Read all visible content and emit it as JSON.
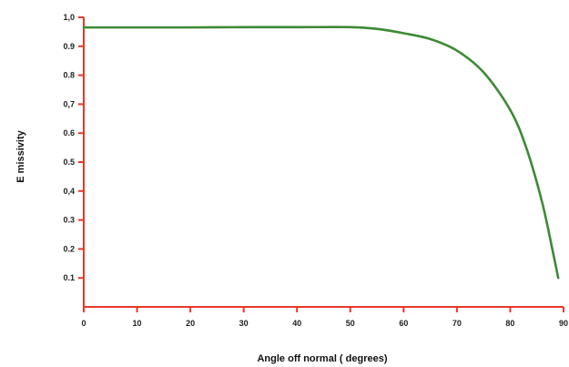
{
  "chart_data": {
    "type": "line",
    "title": "",
    "xlabel": "Angle off normal ( degrees)",
    "ylabel": "E missivity",
    "xlim": [
      0,
      90
    ],
    "ylim": [
      0,
      1.0
    ],
    "x_ticks": [
      {
        "value": 0,
        "label": "0"
      },
      {
        "value": 10,
        "label": "10"
      },
      {
        "value": 20,
        "label": "20"
      },
      {
        "value": 30,
        "label": "30"
      },
      {
        "value": 40,
        "label": "40"
      },
      {
        "value": 50,
        "label": "50"
      },
      {
        "value": 60,
        "label": "60"
      },
      {
        "value": 70,
        "label": "70"
      },
      {
        "value": 80,
        "label": "80"
      },
      {
        "value": 90,
        "label": "90"
      }
    ],
    "y_ticks": [
      {
        "value": 0.1,
        "label": "0.1"
      },
      {
        "value": 0.2,
        "label": "0.2"
      },
      {
        "value": 0.3,
        "label": "0.3"
      },
      {
        "value": 0.4,
        "label": "0,4"
      },
      {
        "value": 0.5,
        "label": "0.5"
      },
      {
        "value": 0.6,
        "label": "0.6"
      },
      {
        "value": 0.7,
        "label": "0,7"
      },
      {
        "value": 0.8,
        "label": "0.8"
      },
      {
        "value": 0.9,
        "label": "0.9"
      },
      {
        "value": 1.0,
        "label": "1,0"
      }
    ],
    "grid": false,
    "axis_color": "#e8382a",
    "series": [
      {
        "color": "#3d8a36",
        "x": [
          0,
          10,
          20,
          30,
          40,
          50,
          55,
          60,
          65,
          70,
          75,
          80,
          83,
          86,
          88,
          89
        ],
        "y": [
          0.965,
          0.965,
          0.965,
          0.966,
          0.966,
          0.966,
          0.96,
          0.945,
          0.925,
          0.885,
          0.81,
          0.68,
          0.55,
          0.36,
          0.19,
          0.1
        ]
      }
    ]
  }
}
